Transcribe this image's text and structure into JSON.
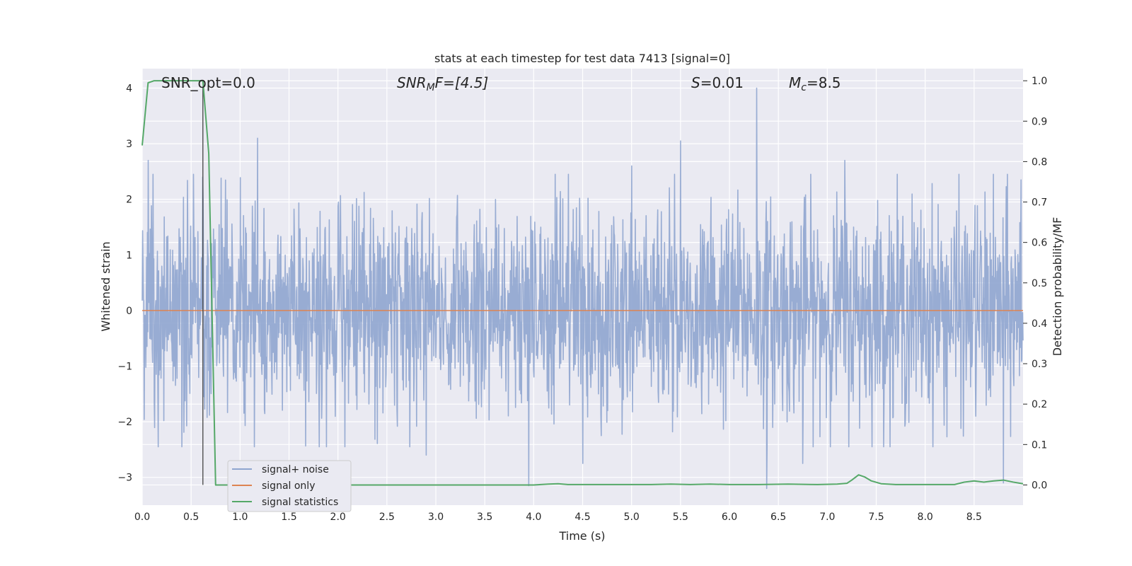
{
  "chart_data": {
    "type": "line",
    "title": "stats at each timestep for test data 7413 [signal=0]",
    "xlabel": "Time (s)",
    "ylabel_left": "Whitened strain",
    "ylabel_right": "Detection probability/MF",
    "xlim": [
      0.0,
      9.0
    ],
    "ylim_left": [
      -3.5,
      4.35
    ],
    "ylim_right": [
      -0.05,
      1.03
    ],
    "x_ticks": [
      "0.0",
      "0.5",
      "1.0",
      "1.5",
      "2.0",
      "2.5",
      "3.0",
      "3.5",
      "4.0",
      "4.5",
      "5.0",
      "5.5",
      "6.0",
      "6.5",
      "7.0",
      "7.5",
      "8.0",
      "8.5"
    ],
    "y_left_ticks": [
      "−3",
      "−2",
      "−1",
      "0",
      "1",
      "2",
      "3",
      "4"
    ],
    "y_right_ticks": [
      "0.0",
      "0.1",
      "0.2",
      "0.3",
      "0.4",
      "0.5",
      "0.6",
      "0.7",
      "0.8",
      "0.9",
      "1.0"
    ],
    "grid": true,
    "legend_position": "lower-left",
    "annotations": {
      "snr_opt": "SNR_opt=0.0",
      "snr_mf_base": "SNR",
      "snr_mf_sub": "M",
      "snr_mf_rest": "F=[4.5]",
      "s_var": "S",
      "s_rest": "=0.01",
      "mc_var": "M",
      "mc_sub": "c",
      "mc_rest": "=8.5"
    },
    "vertical_line_x": 0.62,
    "series": [
      {
        "name": "signal+ noise",
        "axis": "left",
        "color": "#8fa5cf",
        "description_values": "noise ≈ N(0,1), range about −3.2 to 4.0",
        "peaks": [
          {
            "x": 0.06,
            "y": 2.7
          },
          {
            "x": 0.62,
            "y": 2.4
          },
          {
            "x": 1.18,
            "y": 3.1
          },
          {
            "x": 5.0,
            "y": 2.6
          },
          {
            "x": 5.5,
            "y": 3.05
          },
          {
            "x": 6.28,
            "y": 4.0
          },
          {
            "x": 7.18,
            "y": 2.7
          },
          {
            "x": 8.98,
            "y": 2.35
          },
          {
            "x": 3.95,
            "y": -3.15
          },
          {
            "x": 4.5,
            "y": -2.75
          },
          {
            "x": 6.38,
            "y": -3.2
          },
          {
            "x": 6.75,
            "y": -2.75
          },
          {
            "x": 8.8,
            "y": -3.1
          },
          {
            "x": 2.9,
            "y": -2.6
          }
        ]
      },
      {
        "name": "signal only",
        "axis": "left",
        "color": "#dd8452",
        "x": [
          0.0,
          9.0
        ],
        "y": [
          0.0,
          0.0
        ]
      },
      {
        "name": "signal statistics",
        "axis": "right",
        "color": "#55a868",
        "x": [
          0.0,
          0.06,
          0.12,
          0.2,
          0.3,
          0.4,
          0.5,
          0.55,
          0.62,
          0.68,
          0.75,
          0.85,
          1.0,
          2.0,
          3.0,
          3.5,
          4.0,
          4.15,
          4.25,
          4.35,
          4.6,
          5.0,
          5.2,
          5.4,
          5.6,
          5.8,
          6.0,
          6.3,
          6.6,
          6.9,
          7.1,
          7.2,
          7.25,
          7.32,
          7.38,
          7.45,
          7.55,
          7.7,
          8.0,
          8.3,
          8.4,
          8.5,
          8.6,
          8.7,
          8.8,
          8.9,
          9.0
        ],
        "y": [
          0.84,
          0.995,
          1.0,
          1.0,
          1.0,
          1.0,
          1.0,
          1.0,
          1.0,
          0.82,
          0.0,
          0.0,
          0.0,
          0.0,
          0.0,
          0.0,
          0.0,
          0.002,
          0.003,
          0.001,
          0.001,
          0.001,
          0.001,
          0.002,
          0.001,
          0.002,
          0.001,
          0.001,
          0.002,
          0.001,
          0.002,
          0.004,
          0.012,
          0.025,
          0.02,
          0.01,
          0.003,
          0.001,
          0.001,
          0.001,
          0.007,
          0.01,
          0.007,
          0.01,
          0.012,
          0.007,
          0.003
        ]
      }
    ]
  }
}
